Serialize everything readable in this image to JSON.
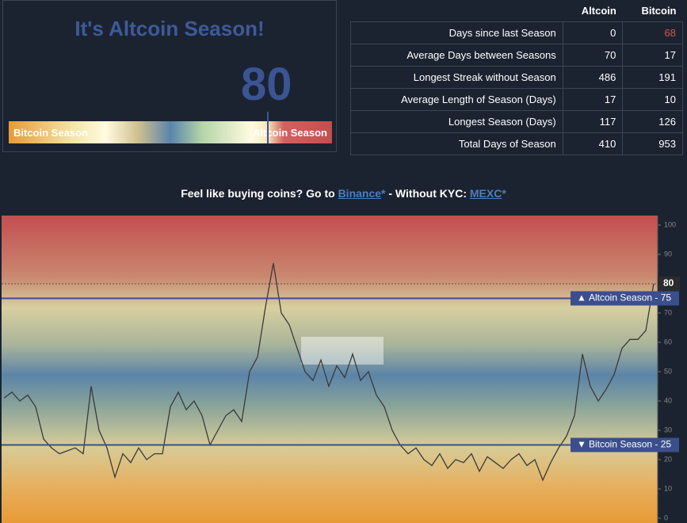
{
  "header": {
    "title": "It's Altcoin Season!",
    "score": 80,
    "gauge_left": "Bitcoin Season",
    "gauge_right": "Altcoin Season"
  },
  "table": {
    "columns": [
      "Altcoin",
      "Bitcoin"
    ],
    "rows": [
      [
        "Days since last Season",
        0,
        68
      ],
      [
        "Average Days between Seasons",
        70,
        17
      ],
      [
        "Longest Streak without Season",
        486,
        191
      ],
      [
        "Average Length of Season (Days)",
        17,
        10
      ],
      [
        "Longest Season (Days)",
        117,
        126
      ],
      [
        "Total Days of Season",
        410,
        953
      ]
    ]
  },
  "promo": {
    "text": "Feel like buying coins? Go to",
    "link1": "Binance",
    "star": "*",
    "middle": "- Without KYC:",
    "link2": "MEXC"
  },
  "chart_data": {
    "type": "line",
    "color": "#3a3a3a",
    "values": [
      41,
      43,
      40,
      42,
      38,
      27,
      24,
      22,
      23,
      24,
      22,
      45,
      30,
      24,
      14,
      22,
      19,
      24,
      20,
      22,
      22,
      38,
      43,
      37,
      40,
      35,
      25,
      30,
      35,
      37,
      33,
      50,
      55,
      72,
      87,
      70,
      66,
      58,
      50,
      47,
      54,
      45,
      52,
      48,
      56,
      47,
      50,
      42,
      38,
      30,
      25,
      22,
      24,
      20,
      18,
      22,
      17,
      20,
      19,
      22,
      16,
      21,
      19,
      17,
      20,
      22,
      18,
      20,
      13,
      19,
      24,
      28,
      35,
      56,
      45,
      40,
      44,
      49,
      58,
      61,
      61,
      64,
      80
    ],
    "ylim": [
      0,
      100
    ],
    "yticks": [
      0,
      10,
      20,
      30,
      40,
      50,
      60,
      70,
      80,
      90,
      100
    ],
    "thresholds": [
      {
        "label": "Altcoin Season - 75",
        "value": 75
      },
      {
        "label": "Bitcoin Season - 25",
        "value": 25
      }
    ]
  }
}
